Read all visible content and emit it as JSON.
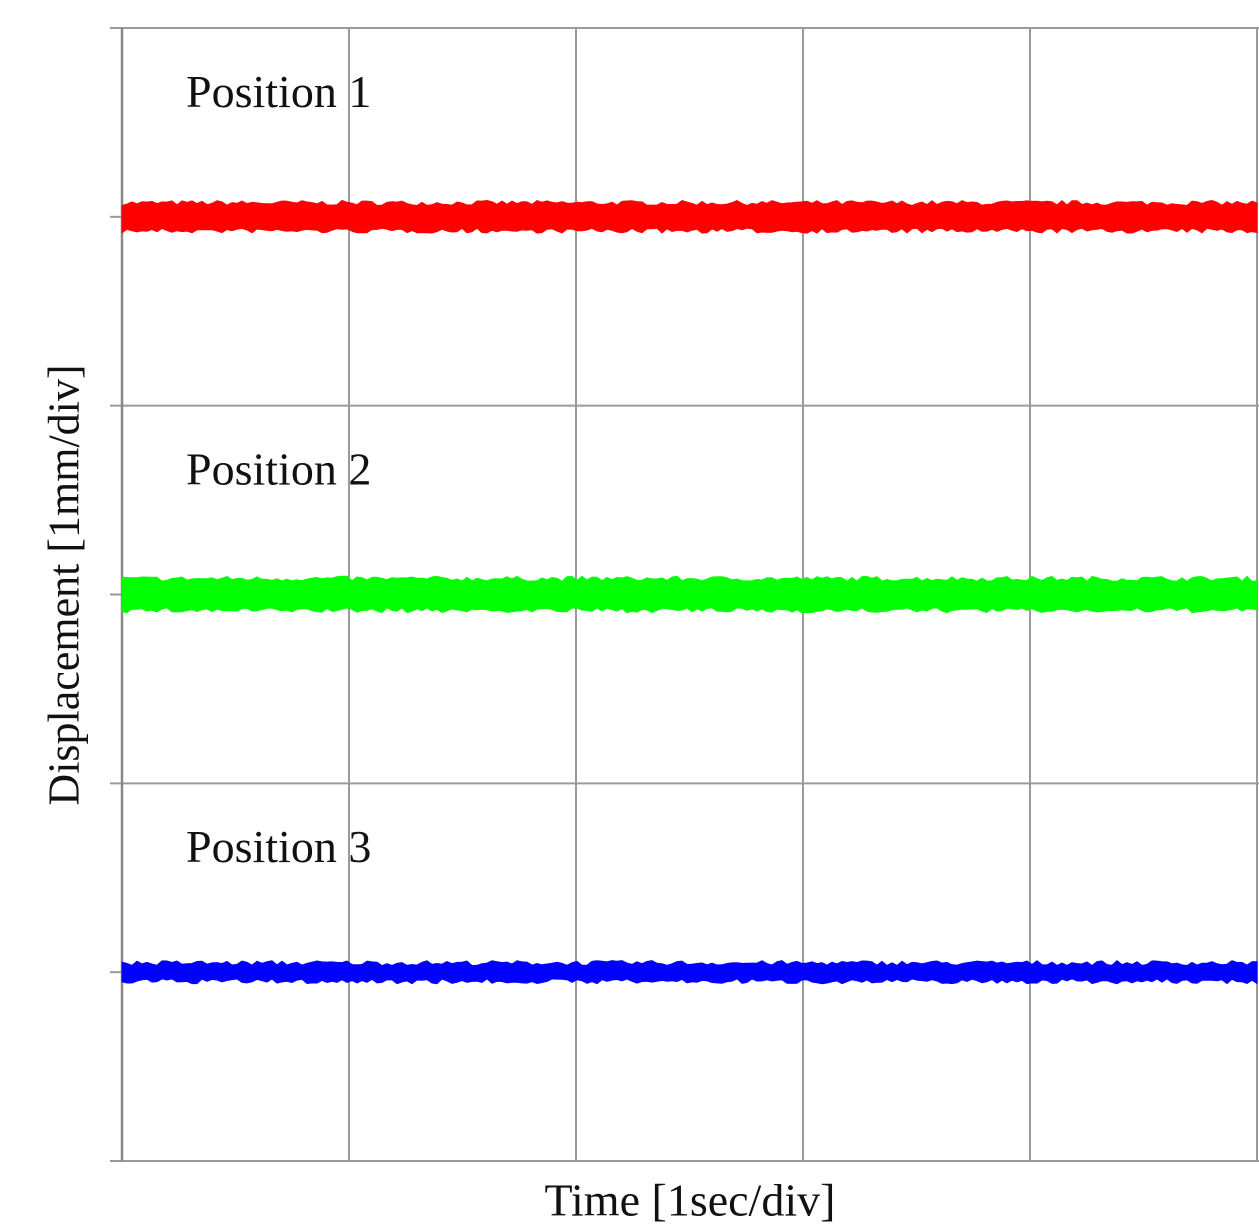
{
  "chart_data": {
    "type": "line",
    "title": "",
    "xlabel": "Time [1sec/div]",
    "ylabel": "Displacement [1mm/div]",
    "x_divisions": 5,
    "y_divisions": 6,
    "grid": true,
    "series": [
      {
        "name": "Position 1",
        "color": "#ff0000",
        "level_div": 5.0,
        "noise_band_div": 0.12
      },
      {
        "name": "Position 2",
        "color": "#00ff00",
        "level_div": 3.0,
        "noise_band_div": 0.14
      },
      {
        "name": "Position 3",
        "color": "#0000ff",
        "level_div": 1.0,
        "noise_band_div": 0.07
      }
    ]
  }
}
